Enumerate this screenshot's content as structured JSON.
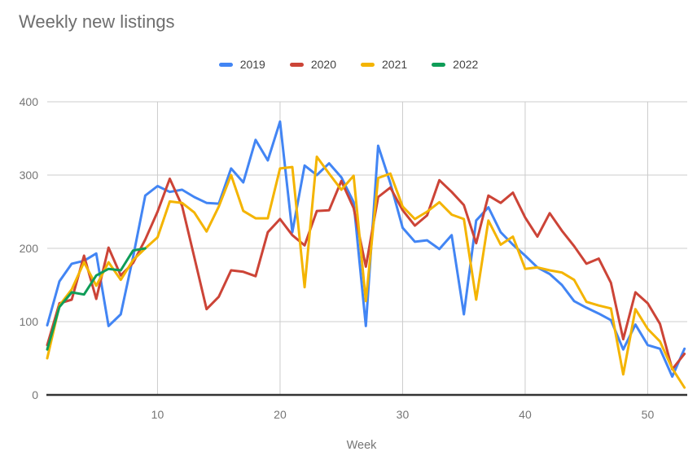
{
  "chart_data": {
    "type": "line",
    "title": "Weekly new listings",
    "xlabel": "Week",
    "ylabel": "",
    "x_ticks": [
      10,
      20,
      30,
      40,
      50
    ],
    "y_ticks": [
      0,
      100,
      200,
      300,
      400
    ],
    "xlim": [
      1,
      53
    ],
    "ylim": [
      0,
      400
    ],
    "grid": true,
    "legend_position": "top",
    "colors": {
      "background": "#ffffff",
      "grid": "#cccccc",
      "axis": "#333333",
      "title_text": "#6e6e6e",
      "tick_text": "#757575",
      "legend_text": "#424242"
    },
    "series": [
      {
        "name": "2019",
        "color": "#4285F4",
        "values": [
          95,
          155,
          179,
          183,
          193,
          94,
          110,
          188,
          272,
          285,
          277,
          280,
          270,
          262,
          261,
          309,
          290,
          348,
          320,
          373,
          222,
          313,
          300,
          316,
          297,
          263,
          94,
          340,
          289,
          228,
          209,
          211,
          199,
          218,
          110,
          238,
          256,
          222,
          205,
          190,
          174,
          165,
          150,
          128,
          119,
          111,
          102,
          62,
          96,
          68,
          63,
          25,
          63
        ]
      },
      {
        "name": "2020",
        "color": "#CC4437",
        "values": [
          68,
          125,
          130,
          190,
          131,
          201,
          163,
          180,
          212,
          250,
          295,
          258,
          188,
          117,
          134,
          170,
          168,
          162,
          222,
          240,
          218,
          204,
          251,
          252,
          292,
          255,
          175,
          270,
          283,
          252,
          231,
          245,
          293,
          277,
          259,
          207,
          272,
          262,
          276,
          242,
          216,
          248,
          224,
          203,
          179,
          186,
          153,
          76,
          140,
          125,
          97,
          35,
          56
        ]
      },
      {
        "name": "2021",
        "color": "#F4B400",
        "values": [
          50,
          122,
          144,
          181,
          149,
          181,
          157,
          184,
          200,
          215,
          264,
          262,
          249,
          223,
          257,
          300,
          251,
          241,
          241,
          309,
          311,
          147,
          325,
          302,
          280,
          299,
          128,
          296,
          302,
          257,
          240,
          250,
          263,
          246,
          240,
          130,
          238,
          205,
          216,
          172,
          174,
          170,
          167,
          157,
          127,
          122,
          118,
          28,
          117,
          90,
          73,
          36,
          10
        ]
      },
      {
        "name": "2022",
        "color": "#0F9D58",
        "values": [
          62,
          120,
          140,
          137,
          163,
          172,
          170,
          197,
          200
        ]
      }
    ]
  }
}
